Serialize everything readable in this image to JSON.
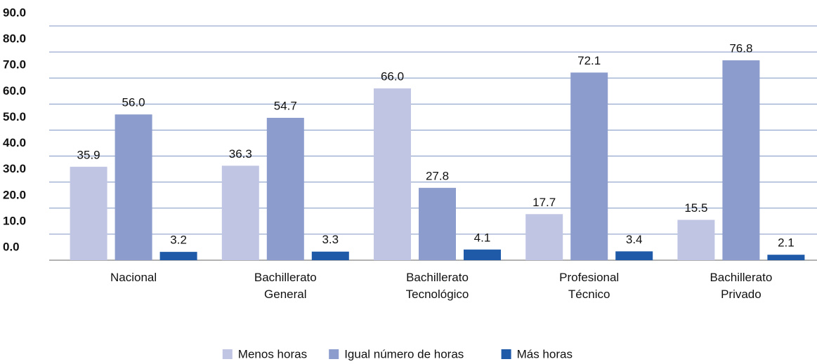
{
  "chart_data": {
    "type": "bar",
    "categories": [
      "Nacional",
      "Bachillerato General",
      "Bachillerato Tecnológico",
      "Profesional Técnico",
      "Bachillerato Privado"
    ],
    "series": [
      {
        "name": "Menos horas",
        "color": "#c0c5e4",
        "values": [
          35.9,
          36.3,
          66.0,
          17.7,
          15.5
        ],
        "value_labels": [
          "35.9",
          "36.3",
          "66.0",
          "17.7",
          "15.5"
        ]
      },
      {
        "name": "Igual número de horas",
        "color": "#8b9ccd",
        "values": [
          56.0,
          54.7,
          27.8,
          72.1,
          76.8
        ],
        "value_labels": [
          "56.0",
          "54.7",
          "27.8",
          "72.1",
          "76.8"
        ]
      },
      {
        "name": "Más horas",
        "color": "#1f5aa8",
        "values": [
          3.2,
          3.3,
          4.1,
          3.4,
          2.1
        ],
        "value_labels": [
          "3.2",
          "3.3",
          "4.1",
          "3.4",
          "2.1"
        ]
      }
    ],
    "ylim": [
      0,
      90
    ],
    "yticks": [
      {
        "value": 0,
        "label": "0.0"
      },
      {
        "value": 10,
        "label": "10.0"
      },
      {
        "value": 20,
        "label": "20.0"
      },
      {
        "value": 30,
        "label": "30.0"
      },
      {
        "value": 40,
        "label": "40.0"
      },
      {
        "value": 50,
        "label": "50.0"
      },
      {
        "value": 60,
        "label": "60.0"
      },
      {
        "value": 70,
        "label": "70.0"
      },
      {
        "value": 80,
        "label": "80.0"
      },
      {
        "value": 90,
        "label": "90.0"
      }
    ],
    "grid": true,
    "legend": "bottom"
  }
}
